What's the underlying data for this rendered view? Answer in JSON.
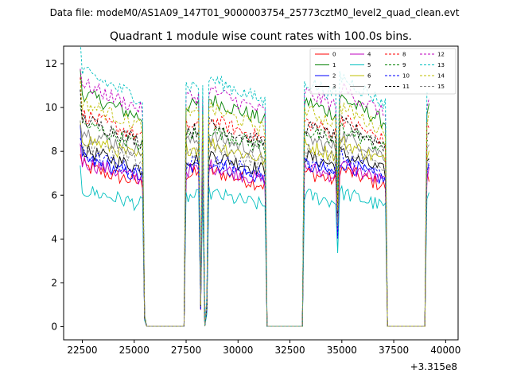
{
  "figure": {
    "suptitle": "Data file: modeM0/AS1A09_147T01_9000003754_25773cztM0_level2_quad_clean.evt"
  },
  "chart_data": {
    "type": "line",
    "title": "Quadrant 1 module wise count rates with 100.0s bins.",
    "xlabel": "",
    "ylabel": "",
    "x_offset_label": "+3.315e8",
    "xlim": [
      21600,
      40600
    ],
    "ylim": [
      -0.6,
      12.8
    ],
    "x_ticks": [
      22500,
      25000,
      27500,
      30000,
      32500,
      35000,
      37500,
      40000
    ],
    "x_tick_labels": [
      "22500",
      "25000",
      "27500",
      "30000",
      "32500",
      "35000",
      "37500",
      "40000"
    ],
    "y_ticks": [
      0,
      2,
      4,
      6,
      8,
      10,
      12
    ],
    "y_tick_labels": [
      "0",
      "2",
      "4",
      "6",
      "8",
      "10",
      "12"
    ],
    "legend_position": "top-right",
    "segments_description": "count rate samples every 100 s; gaps near 0 between observation windows",
    "active_windows": [
      [
        22400,
        25400
      ],
      [
        27500,
        28100
      ],
      [
        28600,
        31300
      ],
      [
        33200,
        34700
      ],
      [
        34900,
        37100
      ],
      [
        39100,
        39200
      ]
    ],
    "series": [
      {
        "name": "0",
        "color": "#ff0000",
        "dash": "solid",
        "level": 6.8
      },
      {
        "name": "1",
        "color": "#008000",
        "dash": "solid",
        "level": 9.9
      },
      {
        "name": "2",
        "color": "#0000ff",
        "dash": "solid",
        "level": 7.1
      },
      {
        "name": "3",
        "color": "#000000",
        "dash": "solid",
        "level": 7.5
      },
      {
        "name": "4",
        "color": "#bf00bf",
        "dash": "solid",
        "level": 7.0
      },
      {
        "name": "5",
        "color": "#00bfbf",
        "dash": "solid",
        "level": 5.8
      },
      {
        "name": "6",
        "color": "#bfbf00",
        "dash": "solid",
        "level": 8.0
      },
      {
        "name": "7",
        "color": "#808080",
        "dash": "solid",
        "level": 8.3
      },
      {
        "name": "8",
        "color": "#ff0000",
        "dash": "dashed",
        "level": 9.0
      },
      {
        "name": "9",
        "color": "#008000",
        "dash": "dashed",
        "level": 8.6
      },
      {
        "name": "10",
        "color": "#0000ff",
        "dash": "dashed",
        "level": 7.3
      },
      {
        "name": "11",
        "color": "#000000",
        "dash": "dashed",
        "level": 8.8
      },
      {
        "name": "12",
        "color": "#bf00bf",
        "dash": "dashed",
        "level": 10.3
      },
      {
        "name": "13",
        "color": "#00bfbf",
        "dash": "dashed",
        "level": 10.8
      },
      {
        "name": "14",
        "color": "#bfbf00",
        "dash": "dashed",
        "level": 9.5
      },
      {
        "name": "15",
        "color": "#808080",
        "dash": "dashed",
        "level": 7.8
      }
    ]
  }
}
